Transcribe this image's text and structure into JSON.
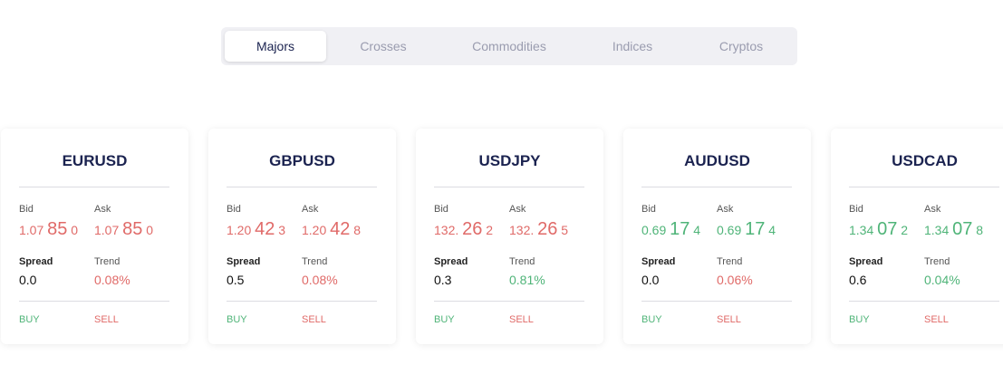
{
  "tabs": [
    {
      "label": "Majors",
      "active": true
    },
    {
      "label": "Crosses",
      "active": false
    },
    {
      "label": "Commodities",
      "active": false
    },
    {
      "label": "Indices",
      "active": false
    },
    {
      "label": "Cryptos",
      "active": false
    }
  ],
  "labels": {
    "bid": "Bid",
    "ask": "Ask",
    "spread": "Spread",
    "trend": "Trend",
    "buy": "BUY",
    "sell": "SELL"
  },
  "cards": [
    {
      "symbol": "EURUSD",
      "bid": {
        "prefix": "1.07",
        "pips": "85",
        "tail": "0"
      },
      "ask": {
        "prefix": "1.07",
        "pips": "85",
        "tail": "0"
      },
      "spread": "0.0",
      "trend": "0.08%",
      "price_color": "#e06a68",
      "trend_color": "#e06a68"
    },
    {
      "symbol": "GBPUSD",
      "bid": {
        "prefix": "1.20",
        "pips": "42",
        "tail": "3"
      },
      "ask": {
        "prefix": "1.20",
        "pips": "42",
        "tail": "8"
      },
      "spread": "0.5",
      "trend": "0.08%",
      "price_color": "#e06a68",
      "trend_color": "#e06a68"
    },
    {
      "symbol": "USDJPY",
      "bid": {
        "prefix": "132.",
        "pips": "26",
        "tail": "2"
      },
      "ask": {
        "prefix": "132.",
        "pips": "26",
        "tail": "5"
      },
      "spread": "0.3",
      "trend": "0.81%",
      "price_color": "#e06a68",
      "trend_color": "#4fb478"
    },
    {
      "symbol": "AUDUSD",
      "bid": {
        "prefix": "0.69",
        "pips": "17",
        "tail": "4"
      },
      "ask": {
        "prefix": "0.69",
        "pips": "17",
        "tail": "4"
      },
      "spread": "0.0",
      "trend": "0.06%",
      "price_color": "#4fb478",
      "trend_color": "#e06a68"
    },
    {
      "symbol": "USDCAD",
      "bid": {
        "prefix": "1.34",
        "pips": "07",
        "tail": "2"
      },
      "ask": {
        "prefix": "1.34",
        "pips": "07",
        "tail": "8"
      },
      "spread": "0.6",
      "trend": "0.04%",
      "price_color": "#4fb478",
      "trend_color": "#4fb478"
    }
  ]
}
